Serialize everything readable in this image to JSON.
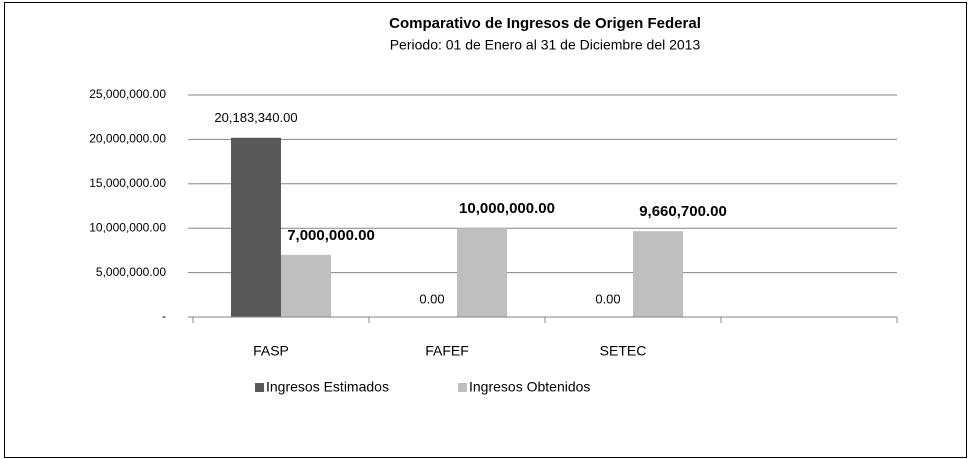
{
  "chart_data": {
    "type": "bar",
    "title": "Comparativo de Ingresos de Origen Federal",
    "subtitle": "Periodo: 01 de Enero al 31 de Diciembre del 2013",
    "categories": [
      "FASP",
      "FAFEF",
      "SETEC",
      null
    ],
    "series": [
      {
        "name": "Ingresos Estimados",
        "color": "#595959",
        "values": [
          20183340,
          0,
          0,
          null
        ],
        "value_labels": [
          "20,183,340.00",
          "0.00",
          "0.00",
          null
        ]
      },
      {
        "name": "Ingresos Obtenidos",
        "color": "#bfbfbf",
        "values": [
          7000000,
          10000000,
          9660700,
          null
        ],
        "value_labels": [
          "7,000,000.00",
          "10,000,000.00",
          "9,660,700.00",
          null
        ]
      }
    ],
    "ylim": [
      0,
      25000000
    ],
    "yticks": [
      {
        "value": 0,
        "label": "-"
      },
      {
        "value": 5000000,
        "label": "5,000,000.00"
      },
      {
        "value": 10000000,
        "label": "10,000,000.00"
      },
      {
        "value": 15000000,
        "label": "15,000,000.00"
      },
      {
        "value": 20000000,
        "label": "20,000,000.00"
      },
      {
        "value": 25000000,
        "label": "25,000,000.00"
      }
    ],
    "grid": true,
    "legend": "bottom"
  }
}
